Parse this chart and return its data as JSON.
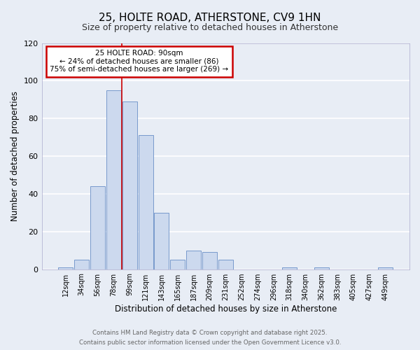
{
  "title": "25, HOLTE ROAD, ATHERSTONE, CV9 1HN",
  "subtitle": "Size of property relative to detached houses in Atherstone",
  "xlabel": "Distribution of detached houses by size in Atherstone",
  "ylabel": "Number of detached properties",
  "bar_color": "#ccd9ee",
  "bar_edge_color": "#7799cc",
  "background_color": "#e8edf5",
  "plot_bg_color": "#e8edf5",
  "grid_color": "#ffffff",
  "categories": [
    "12sqm",
    "34sqm",
    "56sqm",
    "78sqm",
    "99sqm",
    "121sqm",
    "143sqm",
    "165sqm",
    "187sqm",
    "209sqm",
    "231sqm",
    "252sqm",
    "274sqm",
    "296sqm",
    "318sqm",
    "340sqm",
    "362sqm",
    "383sqm",
    "405sqm",
    "427sqm",
    "449sqm"
  ],
  "values": [
    1,
    5,
    44,
    95,
    89,
    71,
    30,
    5,
    10,
    9,
    5,
    0,
    0,
    0,
    1,
    0,
    1,
    0,
    0,
    0,
    1
  ],
  "ylim": [
    0,
    120
  ],
  "yticks": [
    0,
    20,
    40,
    60,
    80,
    100,
    120
  ],
  "annotation_title": "25 HOLTE ROAD: 90sqm",
  "annotation_line1": "← 24% of detached houses are smaller (86)",
  "annotation_line2": "75% of semi-detached houses are larger (269) →",
  "annotation_box_color": "#ffffff",
  "annotation_box_edge_color": "#cc0000",
  "annotation_vline_color": "#cc0000",
  "footer_line1": "Contains HM Land Registry data © Crown copyright and database right 2025.",
  "footer_line2": "Contains public sector information licensed under the Open Government Licence v3.0.",
  "property_size_sqm": 90,
  "property_bar_index": 4,
  "title_fontsize": 11,
  "subtitle_fontsize": 9,
  "annotation_fontsize": 7.5,
  "xlabel_fontsize": 8.5,
  "ylabel_fontsize": 8.5
}
